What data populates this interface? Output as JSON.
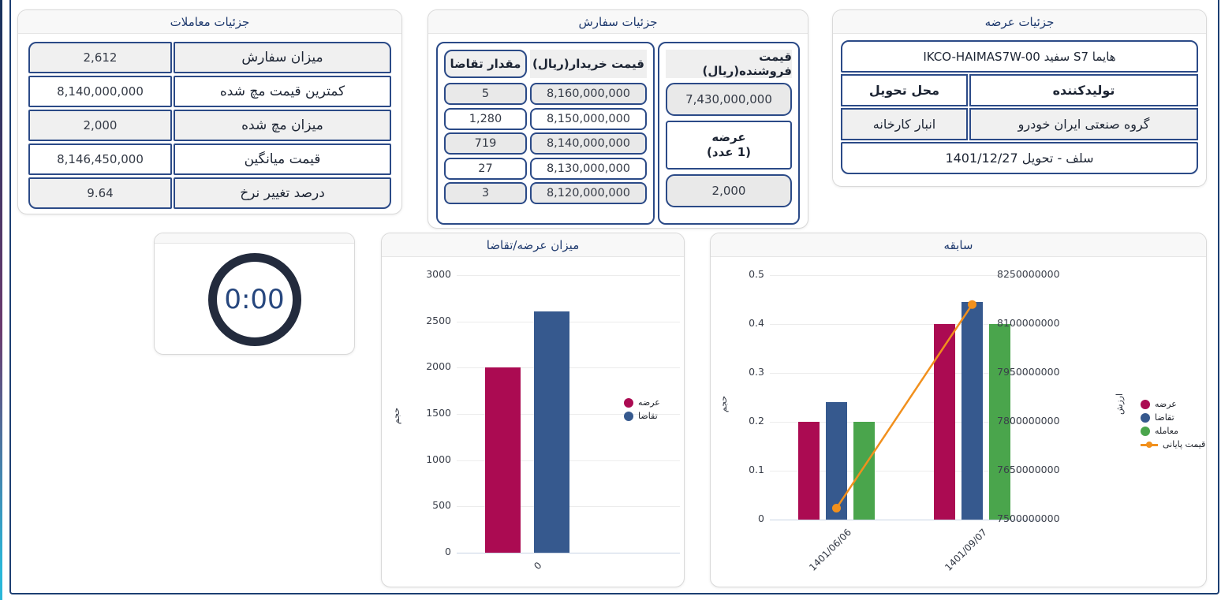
{
  "frame": {
    "accent_gradient": [
      "#16325c",
      "#6b3a6e",
      "#2ab7d9"
    ],
    "border_color": "#1d3f72"
  },
  "deals_panel": {
    "title": "جزئیات معاملات",
    "rows": [
      {
        "label": "میزان سفارش",
        "value": "2,612"
      },
      {
        "label": "کمترین قیمت مچ شده",
        "value": "8,140,000,000"
      },
      {
        "label": "میزان مچ شده",
        "value": "2,000"
      },
      {
        "label": "قیمت میانگین",
        "value": "8,146,450,000"
      },
      {
        "label": "درصد تغییر نرخ",
        "value": "9.64"
      }
    ]
  },
  "orders_panel": {
    "title": "جزئیات سفارش",
    "order_book": {
      "qty_header": "مقدار تقاضا",
      "price_header": "قیمت خریدار(ریال)",
      "rows": [
        {
          "qty": "5",
          "price": "8,160,000,000"
        },
        {
          "qty": "1,280",
          "price": "8,150,000,000"
        },
        {
          "qty": "719",
          "price": "8,140,000,000"
        },
        {
          "qty": "27",
          "price": "8,130,000,000"
        },
        {
          "qty": "3",
          "price": "8,120,000,000"
        }
      ]
    },
    "seller": {
      "header": "قیمت فروشنده(ریال)",
      "price": "7,430,000,000",
      "supply_title": "عرضه",
      "supply_subtitle": "(1 عدد)",
      "supply_qty": "2,000"
    }
  },
  "supply_panel": {
    "title": "جزئیات عرضه",
    "product": "هایما S7 سفید IKCO-HAIMAS7W-00",
    "producer_label": "تولیدکننده",
    "delivery_label": "محل تحویل",
    "producer_value": "گروه صنعتی ایران خودرو",
    "delivery_value": "انبار کارخانه",
    "contract": "سلف - تحویل 1401/12/27"
  },
  "timer": {
    "value": "0:00"
  },
  "chart_data": [
    {
      "id": "supply_demand",
      "type": "bar",
      "title": "میزان عرضه/تقاضا",
      "categories": [
        "0"
      ],
      "series": [
        {
          "key": "supply",
          "name": "عرضه",
          "values": [
            2000
          ],
          "color": "#AB0B52"
        },
        {
          "key": "demand",
          "name": "تقاضا",
          "values": [
            2612
          ],
          "color": "#36598E"
        }
      ],
      "ylabel": "حجم",
      "ylim": [
        0,
        3000
      ],
      "yticks": [
        "0",
        "500",
        "1000",
        "1500",
        "2000",
        "2500",
        "3000"
      ],
      "grid": true,
      "legend_position": "right"
    },
    {
      "id": "history",
      "type": "bar+line",
      "title": "سابقه",
      "categories": [
        "1401/06/06",
        "1401/09/07"
      ],
      "series": [
        {
          "key": "supply",
          "name": "عرضه",
          "values": [
            0.2,
            0.4
          ],
          "color": "#AB0B52"
        },
        {
          "key": "demand",
          "name": "تقاضا",
          "values": [
            0.24,
            0.445
          ],
          "color": "#36598E"
        },
        {
          "key": "trade",
          "name": "معامله",
          "values": [
            0.2,
            0.4
          ],
          "color": "#4AA54C"
        }
      ],
      "line_series": {
        "key": "closing-price",
        "name": "قیمت پایانی",
        "axis": "right",
        "values": [
          7535000000,
          8160000000
        ],
        "color": "#F1901D"
      },
      "ylabel_left": "حجم",
      "ylabel_right": "ارزش",
      "ylim_left": [
        0,
        0.5
      ],
      "yticks_left": [
        "0",
        "0.1",
        "0.2",
        "0.3",
        "0.4",
        "0.5"
      ],
      "ylim_right": [
        7500000000,
        8250000000
      ],
      "yticks_right": [
        "7500000000",
        "7650000000",
        "7800000000",
        "7950000000",
        "8100000000",
        "8250000000"
      ],
      "grid": true,
      "legend_position": "right"
    }
  ],
  "colors": {
    "supply": "#AB0B52",
    "demand": "#36598E",
    "trade": "#4AA54C",
    "closing_price": "#F1901D",
    "table_border": "#2b4a87",
    "header_text": "#1f3a6e"
  }
}
